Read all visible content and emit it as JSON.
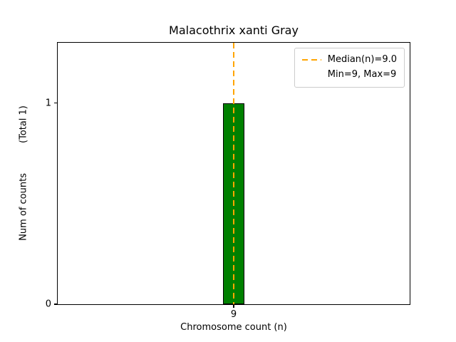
{
  "chart_data": {
    "type": "bar",
    "title": "Malacothrix xanti Gray",
    "xlabel": "Chromosome count (n)",
    "ylabel": "Num of counts",
    "ylabel_note": "(Total 1)",
    "categories": [
      9
    ],
    "values": [
      1
    ],
    "ylim": [
      0,
      1.3
    ],
    "yticks": [
      {
        "value": 0,
        "label": "0"
      },
      {
        "value": 1,
        "label": "1"
      }
    ],
    "xticks": [
      {
        "value": 9,
        "label": "9"
      }
    ],
    "bar_color": "#008000",
    "bar_edge_color": "#000000",
    "median_line": {
      "value": 9.0,
      "color": "#FFA500",
      "style": "dashed"
    },
    "legend": {
      "position": "upper right",
      "entries": [
        {
          "label": "Median(n)=9.0",
          "marker": "dashed-line",
          "color": "#FFA500"
        },
        {
          "label": "Min=9, Max=9",
          "marker": "none"
        }
      ]
    },
    "grid": false
  }
}
